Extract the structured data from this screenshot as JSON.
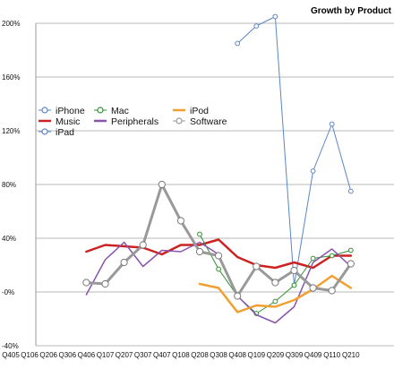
{
  "chart_data": {
    "type": "line",
    "title": "Growth by Product",
    "xlabel": "",
    "ylabel": "",
    "ylim": [
      -40,
      200
    ],
    "yticks": [
      -40,
      0,
      40,
      80,
      120,
      160,
      200
    ],
    "ytick_labels": [
      "-40%",
      "-0%",
      "40%",
      "80%",
      "120%",
      "160%",
      "200%"
    ],
    "grid": "horizontal",
    "legend_placement": "upper-left",
    "categories": [
      "Q405",
      "Q106",
      "Q206",
      "Q306",
      "Q406",
      "Q107",
      "Q207",
      "Q307",
      "Q407",
      "Q108",
      "Q208",
      "Q308",
      "Q408",
      "Q109",
      "Q209",
      "Q309",
      "Q409",
      "Q110",
      "Q210"
    ],
    "series": [
      {
        "name": "iPhone",
        "color": "#5b86c4",
        "marker": "circle-open",
        "width": 1,
        "values": [
          null,
          null,
          null,
          null,
          null,
          null,
          null,
          null,
          null,
          null,
          null,
          null,
          185,
          198,
          205,
          5,
          90,
          125,
          75
        ]
      },
      {
        "name": "Music",
        "color": "#cc2222",
        "marker": "none",
        "width": 2.5,
        "values": [
          null,
          null,
          null,
          null,
          30,
          35,
          34,
          33,
          28,
          35,
          35,
          39,
          26,
          20,
          18,
          22,
          18,
          27,
          27
        ]
      },
      {
        "name": "iPad",
        "color": "#5b86c4",
        "marker": "circle-open",
        "width": 1,
        "values": [
          null,
          null,
          null,
          null,
          null,
          null,
          null,
          null,
          null,
          null,
          null,
          null,
          null,
          null,
          null,
          null,
          null,
          null,
          null
        ]
      },
      {
        "name": "Mac",
        "color": "#2f8f2f",
        "marker": "circle-open",
        "width": 1,
        "values": [
          null,
          null,
          null,
          null,
          null,
          null,
          null,
          null,
          null,
          null,
          43,
          17,
          -3,
          -16,
          -7,
          5,
          25,
          27,
          31
        ]
      },
      {
        "name": "Peripherals",
        "color": "#8855aa",
        "marker": "none",
        "width": 1.5,
        "values": [
          null,
          null,
          null,
          null,
          -2,
          24,
          37,
          19,
          31,
          30,
          37,
          28,
          -3,
          -17,
          -23,
          -11,
          22,
          32,
          19
        ]
      },
      {
        "name": "iPod",
        "color": "#f0a030",
        "marker": "none",
        "width": 2.5,
        "values": [
          null,
          null,
          null,
          null,
          null,
          null,
          null,
          null,
          null,
          null,
          6,
          3,
          -15,
          -10,
          -11,
          -6,
          2,
          12,
          3
        ]
      },
      {
        "name": "Software",
        "color": "#999999",
        "marker": "circle-open",
        "width": 3,
        "values": [
          null,
          null,
          null,
          null,
          7,
          6,
          22,
          35,
          80,
          53,
          30,
          27,
          -3,
          19,
          7,
          16,
          3,
          1,
          21
        ]
      }
    ]
  }
}
